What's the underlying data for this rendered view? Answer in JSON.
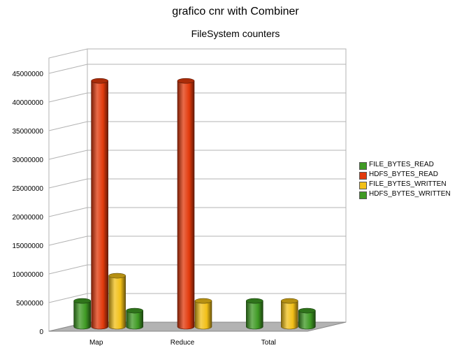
{
  "chart_data": {
    "type": "bar",
    "title": "grafico cnr with Combiner",
    "subtitle": "FileSystem counters",
    "categories": [
      "Map",
      "Reduce",
      "Total"
    ],
    "series": [
      {
        "name": "FILE_BYTES_READ",
        "color": "#3f9a24",
        "values": [
          4500000,
          0,
          4500000
        ]
      },
      {
        "name": "HDFS_BYTES_READ",
        "color": "#e23a0c",
        "values": [
          42900000,
          42900000,
          0
        ]
      },
      {
        "name": "FILE_BYTES_WRITTEN",
        "color": "#f2c018",
        "values": [
          8900000,
          4500000,
          4500000
        ]
      },
      {
        "name": "HDFS_BYTES_WRITTEN",
        "color": "#3f9a24",
        "values": [
          2800000,
          0,
          2800000
        ]
      }
    ],
    "ylim": [
      0,
      45000000
    ],
    "yticks": [
      "0",
      "5000000",
      "10000000",
      "15000000",
      "20000000",
      "25000000",
      "30000000",
      "35000000",
      "40000000",
      "45000000"
    ],
    "grid": true,
    "legend_position": "right"
  }
}
